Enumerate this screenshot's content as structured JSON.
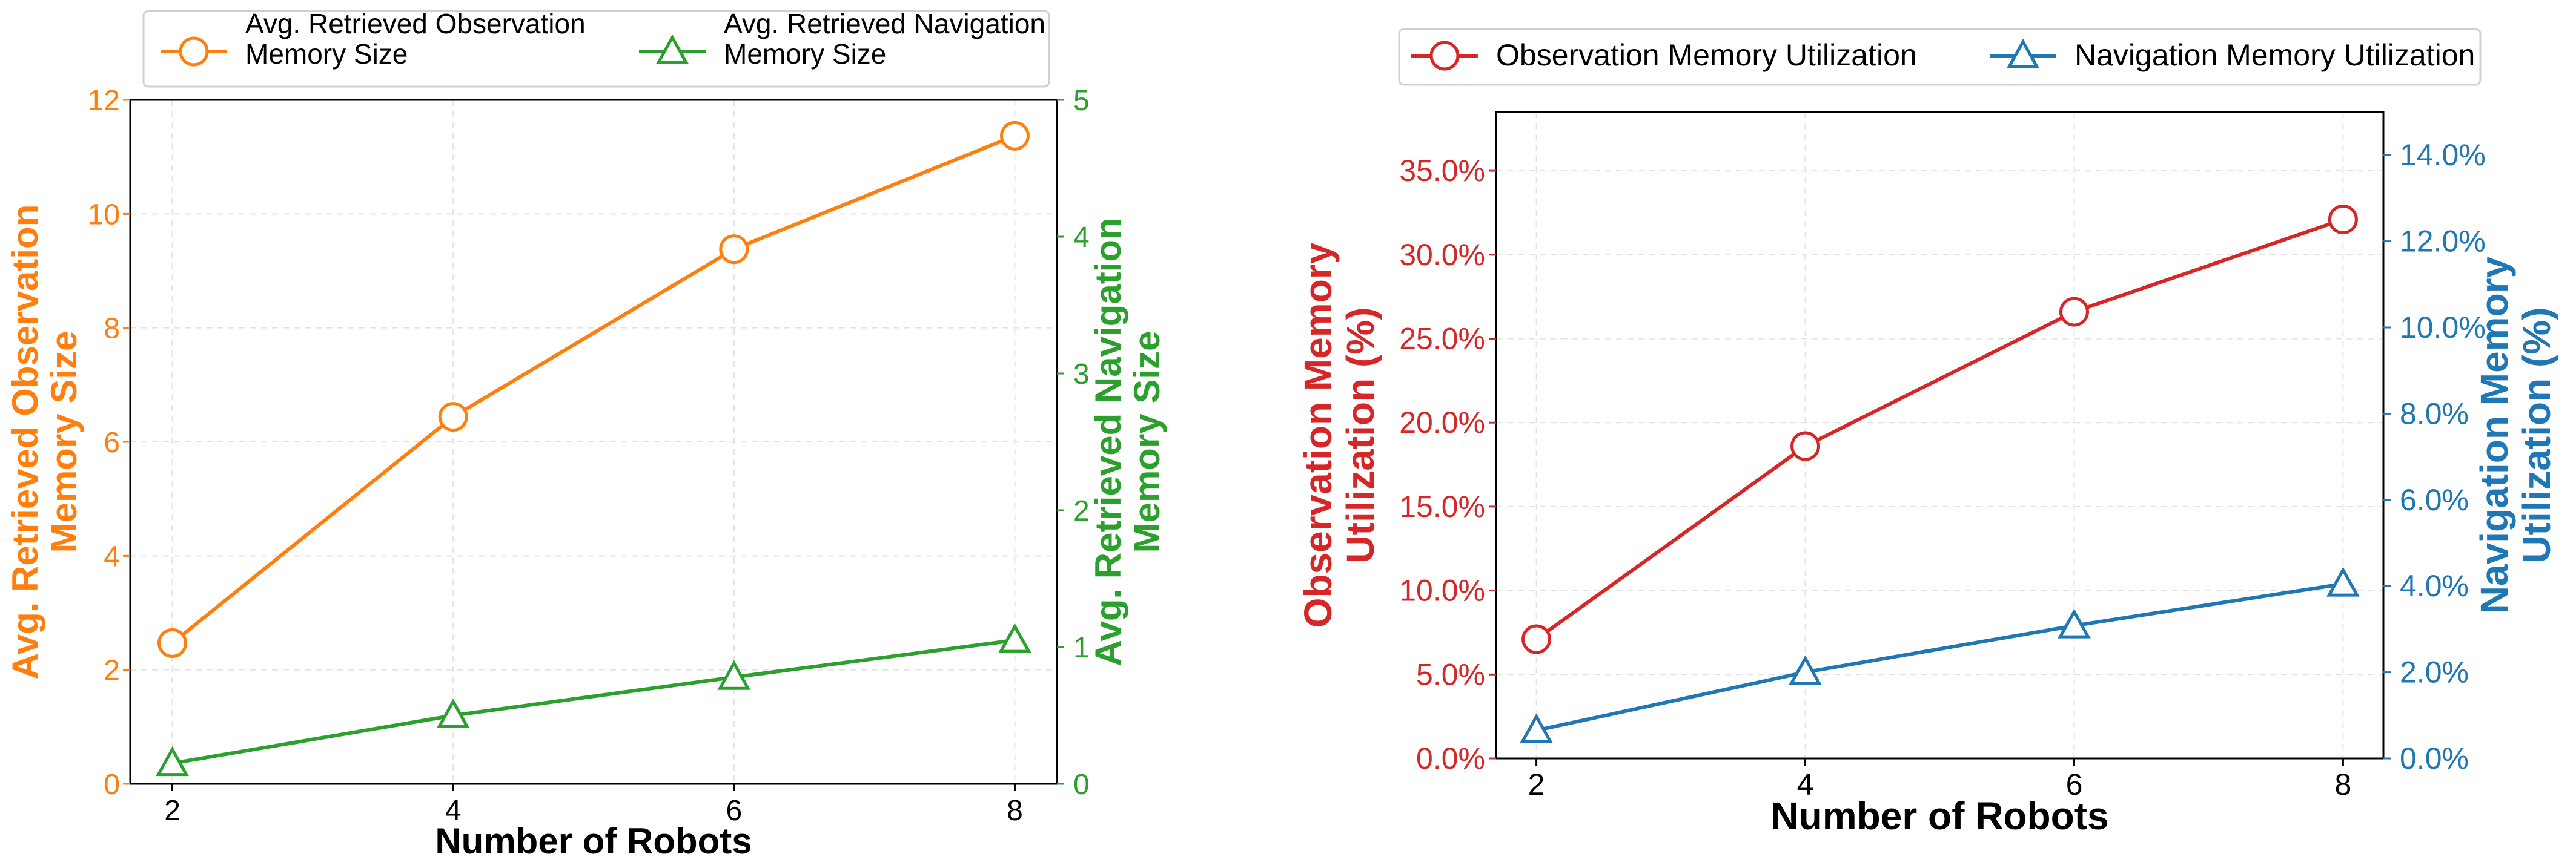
{
  "chart_data": [
    {
      "type": "line",
      "x": [
        2,
        4,
        6,
        8
      ],
      "xlabel": "Number of Robots",
      "xticks": [
        2,
        4,
        6,
        8
      ],
      "xlim": [
        1.7,
        8.3
      ],
      "grid": true,
      "legend_position": "top",
      "left_axis": {
        "label": [
          "Avg. Retrieved Observation",
          "Memory Size"
        ],
        "color": "#ff7f0e",
        "ylim": [
          0,
          12
        ],
        "ticks": [
          "0",
          "2",
          "4",
          "6",
          "8",
          "10",
          "12"
        ],
        "tick_values": [
          0,
          2,
          4,
          6,
          8,
          10,
          12
        ]
      },
      "right_axis": {
        "label": [
          "Avg. Retrieved Navigation",
          "Memory Size"
        ],
        "color": "#2ca02c",
        "ylim": [
          0,
          5
        ],
        "ticks": [
          "0",
          "1",
          "2",
          "3",
          "4",
          "5"
        ],
        "tick_values": [
          0,
          1,
          2,
          3,
          4,
          5
        ]
      },
      "series": [
        {
          "name": [
            "Avg. Retrieved Observation",
            " Memory Size"
          ],
          "axis": "left",
          "color": "#ff7f0e",
          "marker": "circle",
          "values": [
            2.47,
            6.44,
            9.38,
            11.37
          ]
        },
        {
          "name": [
            "Avg. Retrieved Navigation",
            " Memory Size"
          ],
          "axis": "right",
          "color": "#2ca02c",
          "marker": "triangle",
          "values": [
            0.15,
            0.5,
            0.78,
            1.05
          ]
        }
      ]
    },
    {
      "type": "line",
      "x": [
        2,
        4,
        6,
        8
      ],
      "xlabel": "Number of Robots",
      "xticks": [
        2,
        4,
        6,
        8
      ],
      "xlim": [
        1.7,
        8.3
      ],
      "grid": true,
      "legend_position": "top",
      "left_axis": {
        "label": [
          "Observation Memory",
          "Utilization (%)"
        ],
        "color": "#d62728",
        "ylim": [
          0,
          38.5
        ],
        "ticks": [
          "0.0%",
          "5.0%",
          "10.0%",
          "15.0%",
          "20.0%",
          "25.0%",
          "30.0%",
          "35.0%"
        ],
        "tick_values": [
          0,
          5,
          10,
          15,
          20,
          25,
          30,
          35
        ]
      },
      "right_axis": {
        "label": [
          "Navigation Memory",
          "Utilization (%)"
        ],
        "color": "#1f77b4",
        "ylim": [
          0,
          15
        ],
        "ticks": [
          "0.0%",
          "2.0%",
          "4.0%",
          "6.0%",
          "8.0%",
          "10.0%",
          "12.0%",
          "14.0%"
        ],
        "tick_values": [
          0,
          2,
          4,
          6,
          8,
          10,
          12,
          14
        ]
      },
      "series": [
        {
          "name": [
            "Observation Memory Utilization"
          ],
          "axis": "left",
          "color": "#d62728",
          "marker": "circle",
          "values": [
            7.1,
            18.6,
            26.6,
            32.1
          ]
        },
        {
          "name": [
            "Navigation Memory Utilization"
          ],
          "axis": "right",
          "color": "#1f77b4",
          "marker": "triangle",
          "values": [
            0.65,
            2.0,
            3.08,
            4.05
          ]
        }
      ]
    }
  ]
}
